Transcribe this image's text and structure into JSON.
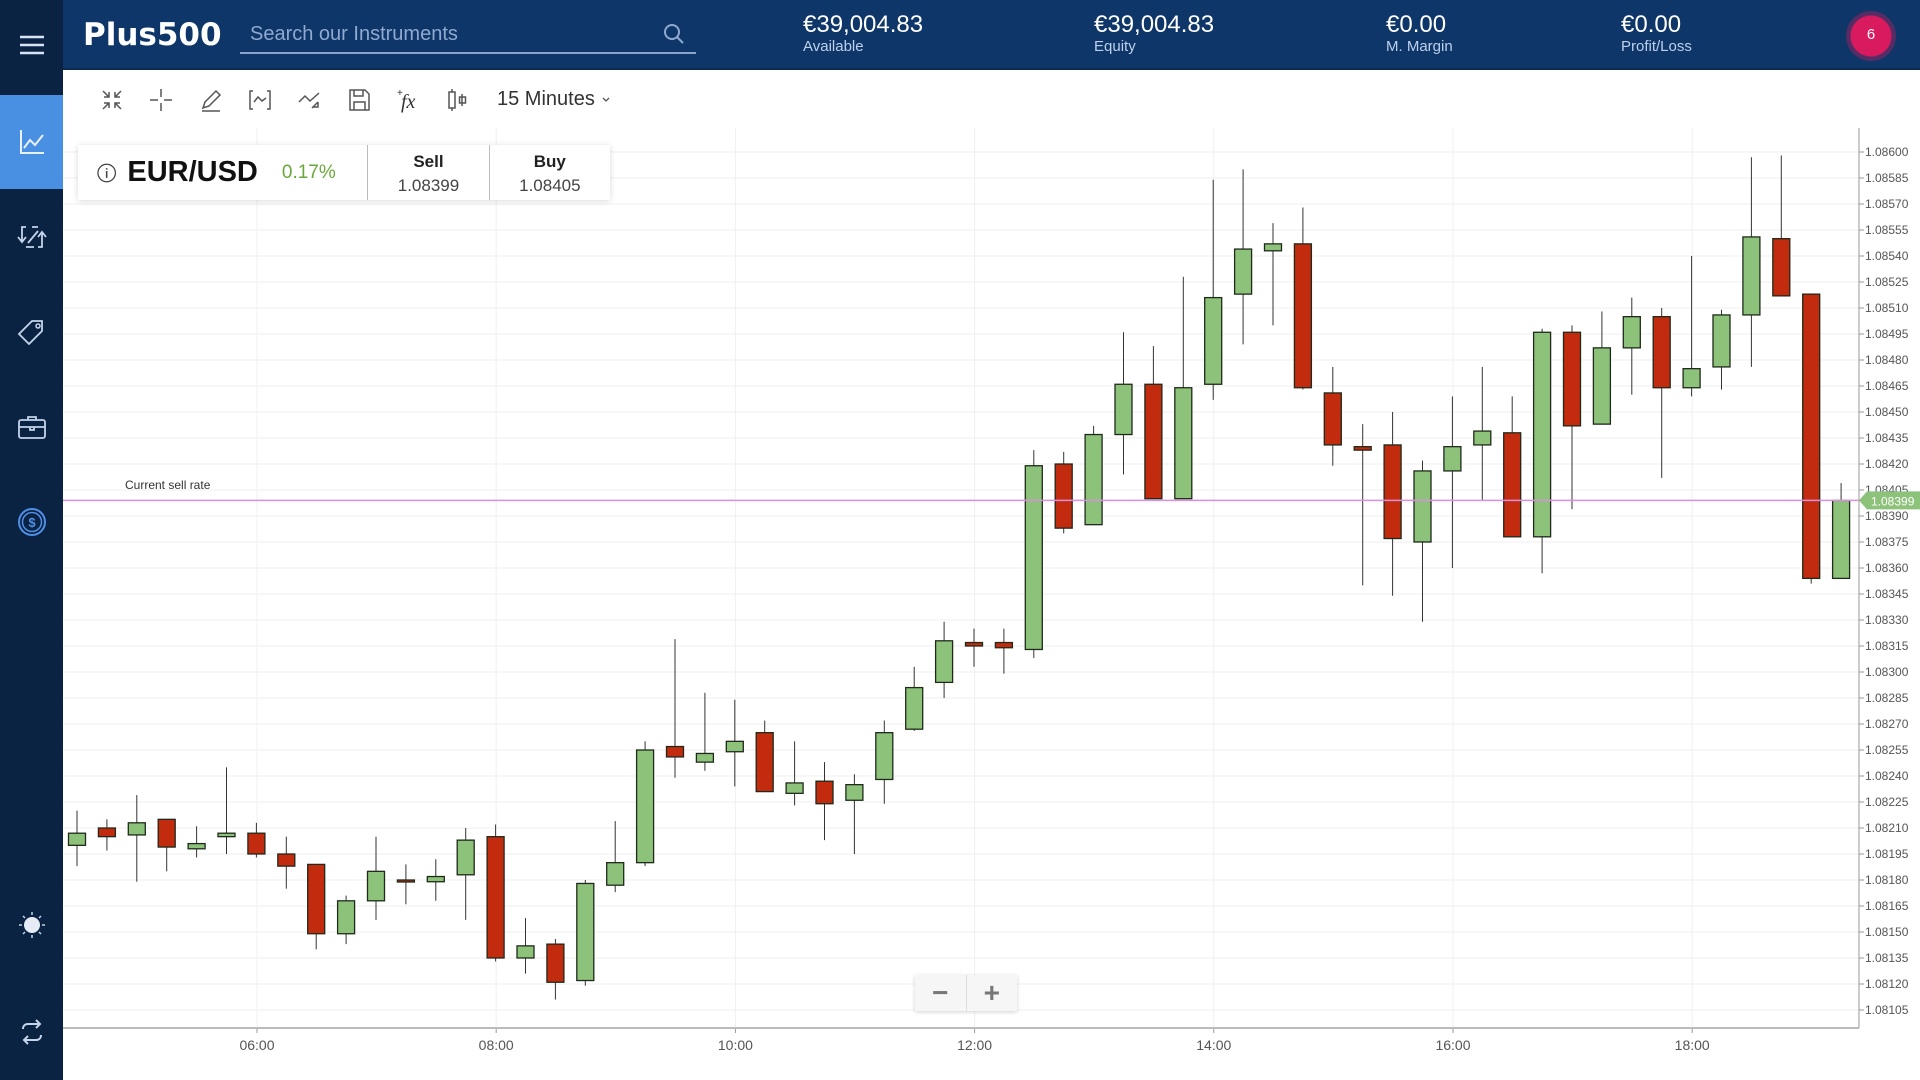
{
  "header": {
    "logo": "Plus500",
    "search_placeholder": "Search our Instruments",
    "stats": [
      {
        "value": "€39,004.83",
        "label": "Available"
      },
      {
        "value": "€39,004.83",
        "label": "Equity"
      },
      {
        "value": "€0.00",
        "label": "M. Margin"
      },
      {
        "value": "€0.00",
        "label": "Profit/Loss"
      }
    ],
    "notification_count": "6"
  },
  "sidebar": {
    "items": [
      {
        "icon": "menu-icon"
      },
      {
        "icon": "chart-icon",
        "active": true
      },
      {
        "icon": "trade-arrows-icon"
      },
      {
        "icon": "tag-icon"
      },
      {
        "icon": "briefcase-icon"
      },
      {
        "icon": "dollar-coin-icon"
      },
      {
        "icon": "sun-icon"
      },
      {
        "icon": "refresh-icon"
      }
    ]
  },
  "toolbar": {
    "tools": [
      "collapse-icon",
      "crosshair-icon",
      "pencil-icon",
      "bracket-line-icon",
      "trend-icon",
      "save-icon",
      "function-icon",
      "candle-type-icon"
    ],
    "interval": "15 Minutes"
  },
  "instrument": {
    "name": "EUR/USD",
    "change": "0.17%",
    "sell_label": "Sell",
    "sell_price": "1.08399",
    "buy_label": "Buy",
    "buy_price": "1.08405"
  },
  "chart_labels": {
    "current_sell_rate": "Current sell rate",
    "current_price_tag": "1.08399",
    "zoom_out": "−",
    "zoom_in": "+"
  },
  "colors": {
    "up": "#8dc27a",
    "down": "#c22b0e",
    "sell_line": "#dc8fe0",
    "header": "#0f3668",
    "sidebar": "#0b2342",
    "accent": "#4a90e2"
  },
  "chart_data": {
    "type": "candlestick",
    "title": "EUR/USD",
    "interval": "15 Minutes",
    "xlabel": "",
    "ylabel": "",
    "x_ticks": [
      "06:00",
      "08:00",
      "10:00",
      "12:00",
      "14:00",
      "16:00",
      "18:00"
    ],
    "y_ticks": [
      "1.08600",
      "1.08585",
      "1.08570",
      "1.08555",
      "1.08540",
      "1.08525",
      "1.08510",
      "1.08495",
      "1.08480",
      "1.08465",
      "1.08450",
      "1.08435",
      "1.08420",
      "1.08405",
      "1.08390",
      "1.08375",
      "1.08360",
      "1.08345",
      "1.08330",
      "1.08315",
      "1.08300",
      "1.08285",
      "1.08270",
      "1.08255",
      "1.08240",
      "1.08225",
      "1.08210",
      "1.08195",
      "1.08180",
      "1.08165",
      "1.08150",
      "1.08135",
      "1.08120",
      "1.08105"
    ],
    "ylim": [
      1.08096,
      1.0861
    ],
    "start_time": "04:30",
    "current_sell_rate": 1.08399,
    "candles": [
      {
        "o": 1.082,
        "h": 1.0822,
        "l": 1.08188,
        "c": 1.08207
      },
      {
        "o": 1.0821,
        "h": 1.08215,
        "l": 1.08197,
        "c": 1.08205
      },
      {
        "o": 1.08206,
        "h": 1.08229,
        "l": 1.08179,
        "c": 1.08213
      },
      {
        "o": 1.08215,
        "h": 1.08215,
        "l": 1.08185,
        "c": 1.08199
      },
      {
        "o": 1.08198,
        "h": 1.08211,
        "l": 1.08193,
        "c": 1.08201
      },
      {
        "o": 1.08205,
        "h": 1.08245,
        "l": 1.08195,
        "c": 1.08207
      },
      {
        "o": 1.08207,
        "h": 1.08213,
        "l": 1.08193,
        "c": 1.08195
      },
      {
        "o": 1.08195,
        "h": 1.08205,
        "l": 1.08175,
        "c": 1.08188
      },
      {
        "o": 1.08189,
        "h": 1.08189,
        "l": 1.0814,
        "c": 1.08149
      },
      {
        "o": 1.08149,
        "h": 1.08171,
        "l": 1.08143,
        "c": 1.08168
      },
      {
        "o": 1.08168,
        "h": 1.08205,
        "l": 1.08157,
        "c": 1.08185
      },
      {
        "o": 1.0818,
        "h": 1.08189,
        "l": 1.08166,
        "c": 1.08179
      },
      {
        "o": 1.08179,
        "h": 1.08192,
        "l": 1.08168,
        "c": 1.08182
      },
      {
        "o": 1.08183,
        "h": 1.0821,
        "l": 1.08157,
        "c": 1.08203
      },
      {
        "o": 1.08205,
        "h": 1.08212,
        "l": 1.08133,
        "c": 1.08135
      },
      {
        "o": 1.08135,
        "h": 1.08158,
        "l": 1.08126,
        "c": 1.08142
      },
      {
        "o": 1.08143,
        "h": 1.08146,
        "l": 1.08111,
        "c": 1.08121
      },
      {
        "o": 1.08122,
        "h": 1.0818,
        "l": 1.08119,
        "c": 1.08178
      },
      {
        "o": 1.08177,
        "h": 1.08214,
        "l": 1.08173,
        "c": 1.0819
      },
      {
        "o": 1.0819,
        "h": 1.0826,
        "l": 1.08188,
        "c": 1.08255
      },
      {
        "o": 1.08257,
        "h": 1.08319,
        "l": 1.08239,
        "c": 1.08251
      },
      {
        "o": 1.08248,
        "h": 1.08288,
        "l": 1.08243,
        "c": 1.08253
      },
      {
        "o": 1.08254,
        "h": 1.08284,
        "l": 1.08234,
        "c": 1.0826
      },
      {
        "o": 1.08265,
        "h": 1.08272,
        "l": 1.08231,
        "c": 1.08231
      },
      {
        "o": 1.0823,
        "h": 1.0826,
        "l": 1.08223,
        "c": 1.08236
      },
      {
        "o": 1.08237,
        "h": 1.08248,
        "l": 1.08203,
        "c": 1.08224
      },
      {
        "o": 1.08226,
        "h": 1.08241,
        "l": 1.08195,
        "c": 1.08235
      },
      {
        "o": 1.08238,
        "h": 1.08272,
        "l": 1.08224,
        "c": 1.08265
      },
      {
        "o": 1.08267,
        "h": 1.08303,
        "l": 1.08266,
        "c": 1.08291
      },
      {
        "o": 1.08294,
        "h": 1.08329,
        "l": 1.08285,
        "c": 1.08318
      },
      {
        "o": 1.08317,
        "h": 1.08325,
        "l": 1.08303,
        "c": 1.08315
      },
      {
        "o": 1.08317,
        "h": 1.08325,
        "l": 1.08299,
        "c": 1.08314
      },
      {
        "o": 1.08313,
        "h": 1.08428,
        "l": 1.08308,
        "c": 1.08419
      },
      {
        "o": 1.0842,
        "h": 1.08427,
        "l": 1.0838,
        "c": 1.08383
      },
      {
        "o": 1.08385,
        "h": 1.08442,
        "l": 1.08385,
        "c": 1.08437
      },
      {
        "o": 1.08437,
        "h": 1.08496,
        "l": 1.08414,
        "c": 1.08466
      },
      {
        "o": 1.08466,
        "h": 1.08488,
        "l": 1.084,
        "c": 1.084
      },
      {
        "o": 1.084,
        "h": 1.08528,
        "l": 1.084,
        "c": 1.08464
      },
      {
        "o": 1.08466,
        "h": 1.08584,
        "l": 1.08457,
        "c": 1.08516
      },
      {
        "o": 1.08518,
        "h": 1.0859,
        "l": 1.08489,
        "c": 1.08544
      },
      {
        "o": 1.08543,
        "h": 1.08559,
        "l": 1.085,
        "c": 1.08547
      },
      {
        "o": 1.08547,
        "h": 1.08568,
        "l": 1.08463,
        "c": 1.08464
      },
      {
        "o": 1.08461,
        "h": 1.08476,
        "l": 1.08419,
        "c": 1.08431
      },
      {
        "o": 1.0843,
        "h": 1.08443,
        "l": 1.0835,
        "c": 1.08428
      },
      {
        "o": 1.08431,
        "h": 1.0845,
        "l": 1.08344,
        "c": 1.08377
      },
      {
        "o": 1.08375,
        "h": 1.08422,
        "l": 1.08329,
        "c": 1.08416
      },
      {
        "o": 1.08416,
        "h": 1.08459,
        "l": 1.0836,
        "c": 1.0843
      },
      {
        "o": 1.08431,
        "h": 1.08476,
        "l": 1.08399,
        "c": 1.08439
      },
      {
        "o": 1.08438,
        "h": 1.08459,
        "l": 1.08378,
        "c": 1.08378
      },
      {
        "o": 1.08378,
        "h": 1.08498,
        "l": 1.08357,
        "c": 1.08496
      },
      {
        "o": 1.08496,
        "h": 1.085,
        "l": 1.08394,
        "c": 1.08442
      },
      {
        "o": 1.08443,
        "h": 1.08508,
        "l": 1.08443,
        "c": 1.08487
      },
      {
        "o": 1.08487,
        "h": 1.08516,
        "l": 1.0846,
        "c": 1.08505
      },
      {
        "o": 1.08505,
        "h": 1.0851,
        "l": 1.08412,
        "c": 1.08464
      },
      {
        "o": 1.08464,
        "h": 1.0854,
        "l": 1.08459,
        "c": 1.08475
      },
      {
        "o": 1.08476,
        "h": 1.08509,
        "l": 1.08463,
        "c": 1.08506
      },
      {
        "o": 1.08506,
        "h": 1.08597,
        "l": 1.08476,
        "c": 1.08551
      },
      {
        "o": 1.0855,
        "h": 1.08598,
        "l": 1.08517,
        "c": 1.08517
      },
      {
        "o": 1.08518,
        "h": 1.08518,
        "l": 1.08351,
        "c": 1.08354
      },
      {
        "o": 1.08354,
        "h": 1.08409,
        "l": 1.08354,
        "c": 1.08399
      }
    ]
  }
}
